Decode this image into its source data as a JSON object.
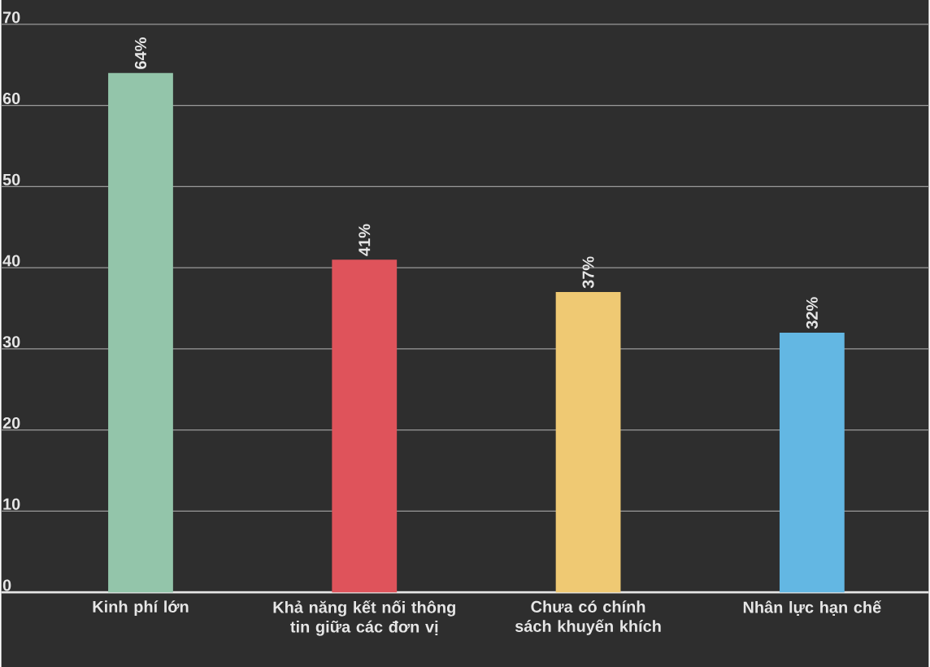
{
  "chart_data": {
    "type": "bar",
    "categories": [
      "Kinh phí lớn",
      "Khả năng kết nối thông tin giữa các đơn vị",
      "Chưa có chính sách khuyến khích",
      "Nhân lực hạn chế"
    ],
    "values": [
      64,
      41,
      37,
      32
    ],
    "colors": [
      "#93c5aa",
      "#df535b",
      "#efc973",
      "#63b7e3"
    ],
    "value_labels": [
      "64%",
      "41%",
      "37%",
      "32%"
    ],
    "ylim": [
      0,
      70
    ],
    "yticks": [
      0,
      10,
      20,
      30,
      40,
      50,
      60,
      70
    ],
    "grid": "y"
  }
}
